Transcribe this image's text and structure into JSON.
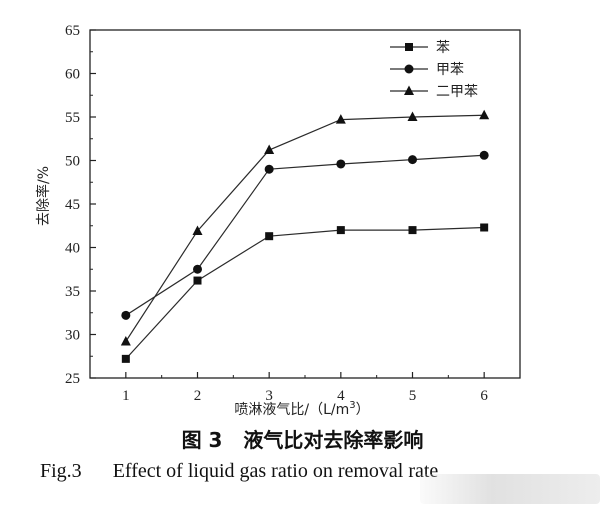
{
  "chart_data": {
    "type": "line",
    "x": [
      1,
      2,
      3,
      4,
      5,
      6
    ],
    "xticks": [
      "1",
      "2",
      "3",
      "4",
      "5",
      "6"
    ],
    "yticks": [
      "25",
      "30",
      "35",
      "40",
      "45",
      "50",
      "55",
      "60",
      "65"
    ],
    "xlim": [
      0.5,
      6.5
    ],
    "ylim": [
      25,
      65
    ],
    "xlabel": "喷淋液气比/（L/m",
    "xlabel_sup": "3",
    "xlabel_end": "）",
    "ylabel": "去除率/%",
    "legend_position": "top-right",
    "grid": false,
    "series": [
      {
        "name": "苯",
        "marker": "square",
        "values": [
          27.2,
          36.2,
          41.3,
          42.0,
          42.0,
          42.3
        ]
      },
      {
        "name": "甲苯",
        "marker": "circle",
        "values": [
          32.2,
          37.5,
          49.0,
          49.6,
          50.1,
          50.6
        ]
      },
      {
        "name": "二甲苯",
        "marker": "triangle",
        "values": [
          29.2,
          41.9,
          51.2,
          54.7,
          55.0,
          55.2
        ]
      }
    ]
  },
  "caption": {
    "cn_num": "图 3",
    "cn_text": "液气比对去除率影响",
    "en_num": "Fig.3",
    "en_text": "Effect of liquid gas ratio on removal rate"
  },
  "colors": {
    "line": "#2b2b2b",
    "marker": "#111111",
    "axis": "#222222"
  }
}
